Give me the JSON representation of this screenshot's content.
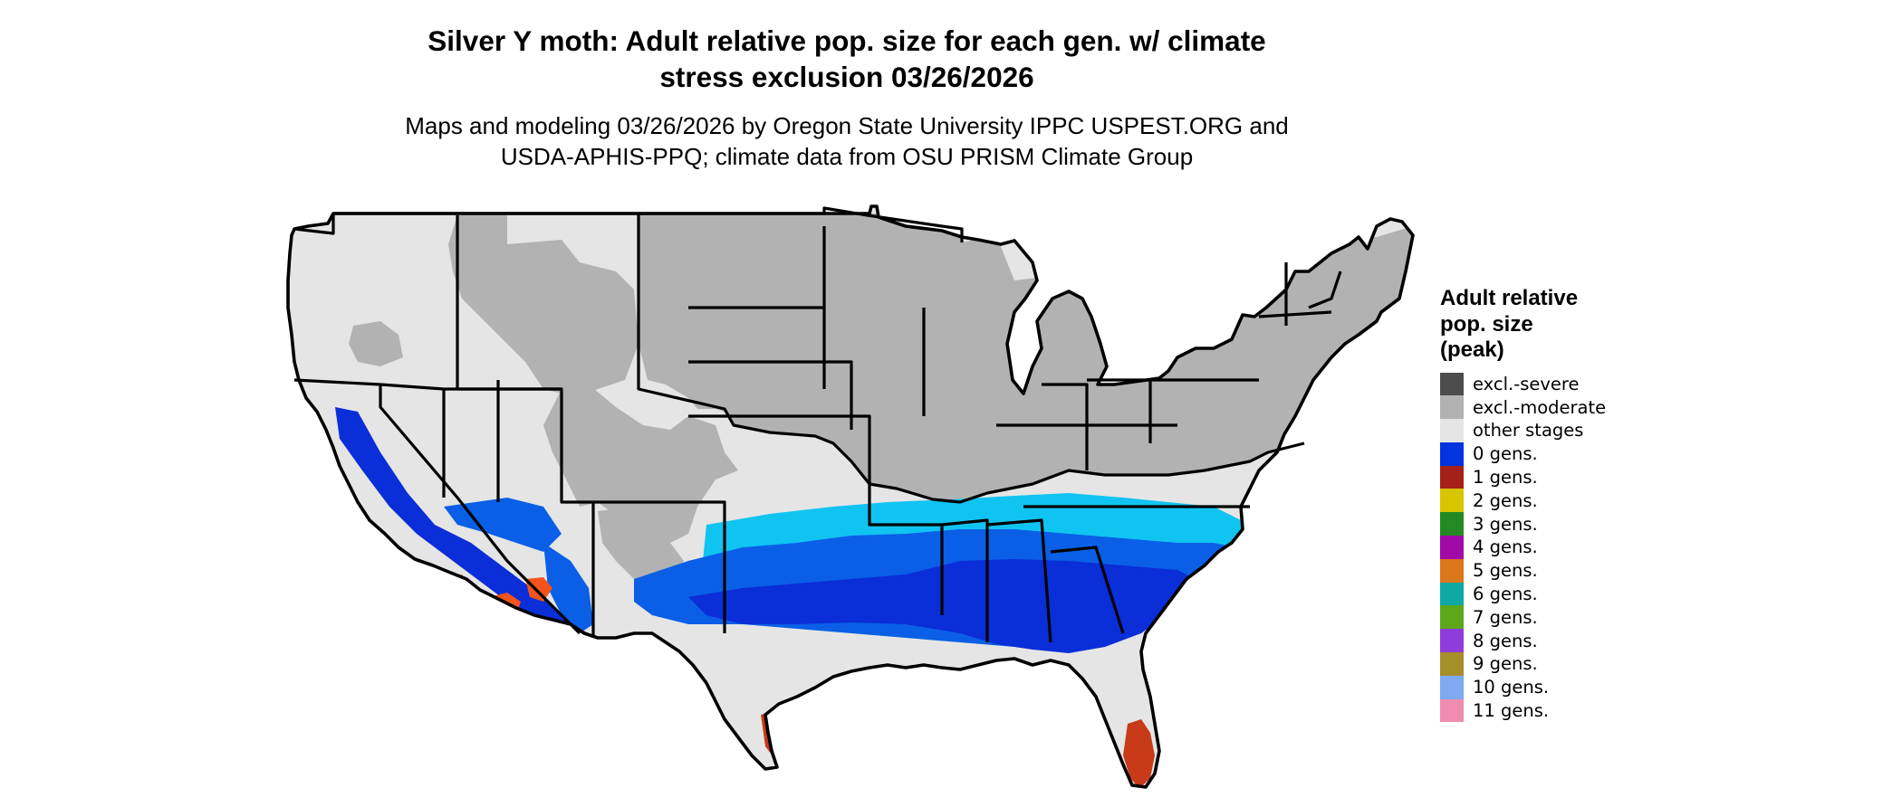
{
  "title_line1": "Silver Y moth: Adult relative pop. size for each gen. w/ climate",
  "title_line2": "stress exclusion 03/26/2026",
  "subtitle_line1": "Maps and modeling 03/26/2026 by Oregon State University IPPC USPEST.ORG and",
  "subtitle_line2": "USDA-APHIS-PPQ; climate data from OSU PRISM Climate Group",
  "legend": {
    "title_line1": "Adult relative",
    "title_line2": "pop. size",
    "title_line3": "(peak)",
    "items": [
      {
        "label": "excl.-severe",
        "color": "#4d4d4d"
      },
      {
        "label": "excl.-moderate",
        "color": "#b2b2b2"
      },
      {
        "label": "other stages",
        "color": "#e5e5e5"
      },
      {
        "label": "0 gens.",
        "color": "#0433e0"
      },
      {
        "label": "1 gens.",
        "color": "#a52117"
      },
      {
        "label": "2 gens.",
        "color": "#d9c400"
      },
      {
        "label": "3 gens.",
        "color": "#238a23"
      },
      {
        "label": "4 gens.",
        "color": "#a00aa6"
      },
      {
        "label": "5 gens.",
        "color": "#dc761a"
      },
      {
        "label": "6 gens.",
        "color": "#10a8a4"
      },
      {
        "label": "7 gens.",
        "color": "#5ca81a"
      },
      {
        "label": "8 gens.",
        "color": "#8e3cdc"
      },
      {
        "label": "9 gens.",
        "color": "#a68e28"
      },
      {
        "label": "10 gens.",
        "color": "#7daaf0"
      },
      {
        "label": "11 gens.",
        "color": "#f08cb0"
      }
    ]
  },
  "map_colors": {
    "land_other": "#e5e5e5",
    "excl_moderate": "#b2b2b2",
    "gen0_dark": "#0a2ed8",
    "gen0_mid": "#0a5fe6",
    "gen0_light": "#0aa6ec",
    "gen0_cyan": "#10c4f2",
    "gen1_red": "#c83a18",
    "gen1_orange": "#f2541c",
    "border": "#000000"
  }
}
